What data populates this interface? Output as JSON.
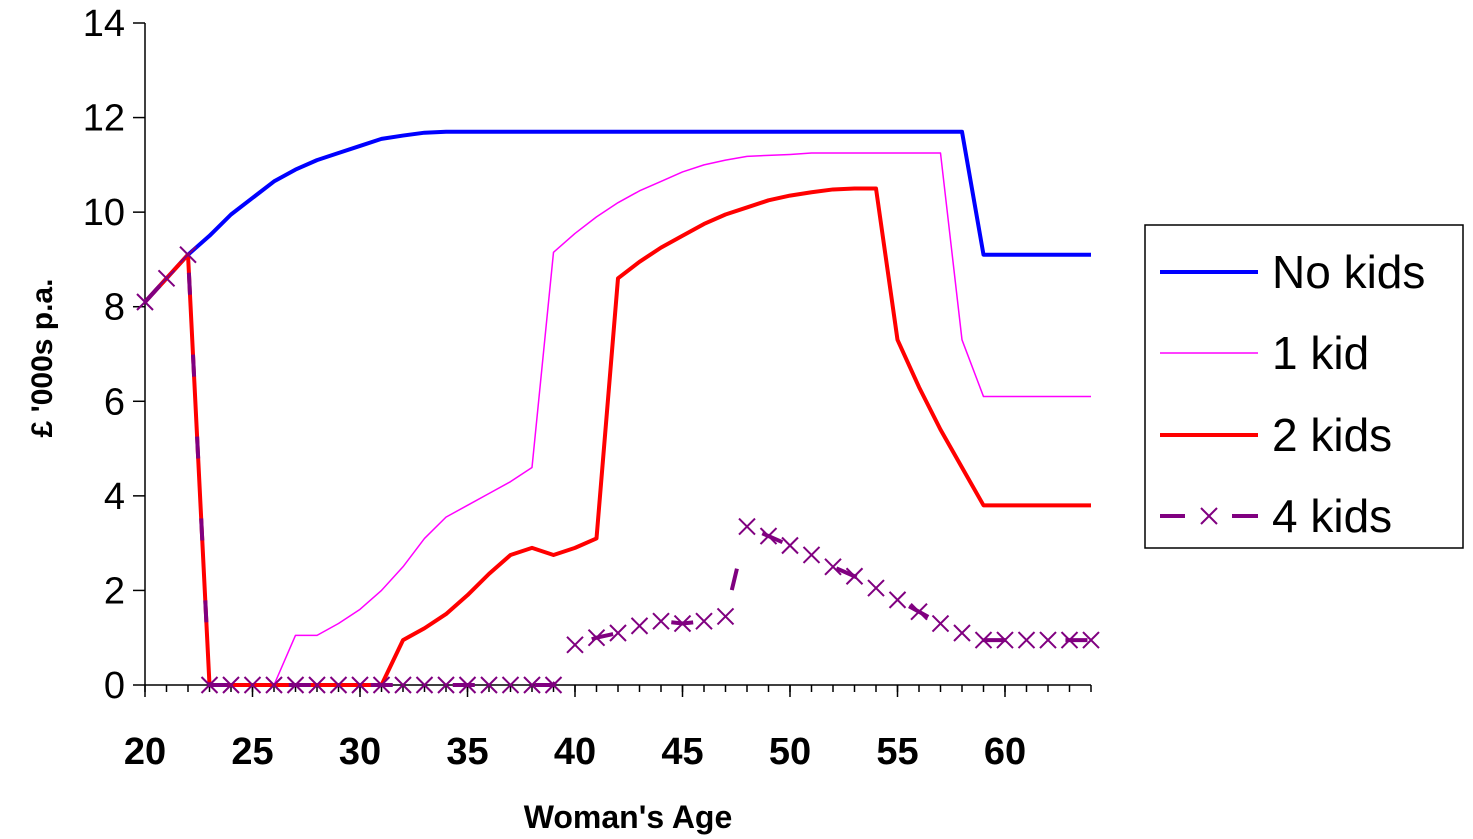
{
  "chart_data": {
    "type": "line",
    "xlabel": "Woman's Age",
    "ylabel": "£ '000s p.a.",
    "xlim": [
      20,
      64
    ],
    "ylim": [
      0,
      14
    ],
    "xticks": [
      "20",
      "25",
      "30",
      "35",
      "40",
      "45",
      "50",
      "55",
      "60"
    ],
    "yticks": [
      "0",
      "2",
      "4",
      "6",
      "8",
      "10",
      "12",
      "14"
    ],
    "grid": false,
    "legend_position": "right",
    "x": [
      20,
      21,
      22,
      23,
      24,
      25,
      26,
      27,
      28,
      29,
      30,
      31,
      32,
      33,
      34,
      35,
      36,
      37,
      38,
      39,
      40,
      41,
      42,
      43,
      44,
      45,
      46,
      47,
      48,
      49,
      50,
      51,
      52,
      53,
      54,
      55,
      56,
      57,
      58,
      59,
      60,
      61,
      62,
      63,
      64
    ],
    "series": [
      {
        "name": "No kids",
        "color": "#0000ff",
        "style": "solid",
        "values": [
          8.1,
          8.6,
          9.1,
          9.5,
          9.95,
          10.3,
          10.65,
          10.9,
          11.1,
          11.25,
          11.4,
          11.55,
          11.62,
          11.68,
          11.7,
          11.7,
          11.7,
          11.7,
          11.7,
          11.7,
          11.7,
          11.7,
          11.7,
          11.7,
          11.7,
          11.7,
          11.7,
          11.7,
          11.7,
          11.7,
          11.7,
          11.7,
          11.7,
          11.7,
          11.7,
          11.7,
          11.7,
          11.7,
          11.7,
          9.1,
          9.1,
          9.1,
          9.1,
          9.1,
          9.1
        ]
      },
      {
        "name": "1 kid",
        "color": "#ff00ff",
        "style": "thin",
        "values": [
          8.1,
          8.6,
          9.1,
          0.0,
          0.0,
          0.0,
          0.0,
          1.05,
          1.05,
          1.3,
          1.6,
          2.0,
          2.5,
          3.1,
          3.55,
          3.8,
          4.05,
          4.3,
          4.6,
          9.15,
          9.55,
          9.9,
          10.2,
          10.45,
          10.65,
          10.85,
          11.0,
          11.1,
          11.18,
          11.2,
          11.22,
          11.25,
          11.25,
          11.25,
          11.25,
          11.25,
          11.25,
          11.25,
          7.3,
          6.1,
          6.1,
          6.1,
          6.1,
          6.1,
          6.1
        ]
      },
      {
        "name": "2 kids",
        "color": "#ff0000",
        "style": "solid",
        "values": [
          8.1,
          8.6,
          9.1,
          0.0,
          0.0,
          0.0,
          0.0,
          0.0,
          0.0,
          0.0,
          0.0,
          0.0,
          0.95,
          1.2,
          1.5,
          1.9,
          2.35,
          2.75,
          2.9,
          2.75,
          2.9,
          3.1,
          8.6,
          8.95,
          9.25,
          9.5,
          9.75,
          9.95,
          10.1,
          10.25,
          10.35,
          10.42,
          10.48,
          10.5,
          10.5,
          7.3,
          6.3,
          5.4,
          4.6,
          3.8,
          3.8,
          3.8,
          3.8,
          3.8,
          3.8
        ]
      },
      {
        "name": "4 kids",
        "color": "#800080",
        "style": "dashed-x",
        "values": [
          8.1,
          8.6,
          9.1,
          0.0,
          0.0,
          0.0,
          0.0,
          0.0,
          0.0,
          0.0,
          0.0,
          0.0,
          0.0,
          0.0,
          0.0,
          0.0,
          0.0,
          0.0,
          0.0,
          0.0,
          0.85,
          1.0,
          1.1,
          1.25,
          1.35,
          1.3,
          1.35,
          1.45,
          3.35,
          3.15,
          2.95,
          2.75,
          2.5,
          2.3,
          2.05,
          1.8,
          1.55,
          1.3,
          1.1,
          0.95,
          0.95,
          0.95,
          0.95,
          0.95,
          0.95
        ]
      }
    ]
  }
}
